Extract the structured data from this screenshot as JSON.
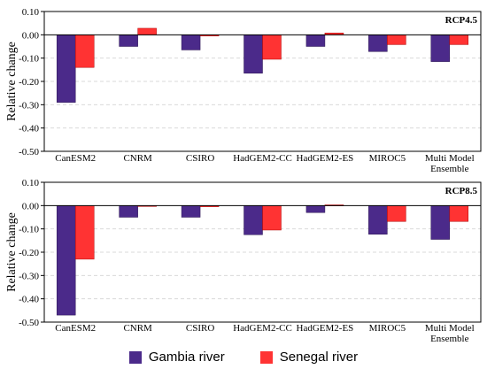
{
  "legend": {
    "items": [
      {
        "label": "Gambia river",
        "color": "#4b2a8a"
      },
      {
        "label": "Senegal river",
        "color": "#ff3333"
      }
    ]
  },
  "chart_data": [
    {
      "type": "bar",
      "annotation": "RCP4.5",
      "xlabel": "",
      "ylabel": "Relative change",
      "ylim": [
        -0.5,
        0.1
      ],
      "yticks": [
        0.1,
        0.0,
        -0.1,
        -0.2,
        -0.3,
        -0.4,
        -0.5
      ],
      "ytick_labels": [
        "0.10",
        "0.00",
        "-0.10",
        "-0.20",
        "-0.30",
        "-0.40",
        "-0.50"
      ],
      "categories": [
        "CanESM2",
        "CNRM",
        "CSIRO",
        "HadGEM2-CC",
        "HadGEM2-ES",
        "MIROC5",
        "Multi Model Ensemble"
      ],
      "grid": true,
      "series": [
        {
          "name": "Gambia river",
          "color": "#4b2a8a",
          "values": [
            -0.29,
            -0.05,
            -0.065,
            -0.165,
            -0.05,
            -0.072,
            -0.115
          ]
        },
        {
          "name": "Senegal river",
          "color": "#ff3333",
          "values": [
            -0.14,
            0.028,
            -0.005,
            -0.105,
            0.008,
            -0.042,
            -0.042
          ]
        }
      ]
    },
    {
      "type": "bar",
      "annotation": "RCP8.5",
      "xlabel": "",
      "ylabel": "Relative change",
      "ylim": [
        -0.5,
        0.1
      ],
      "yticks": [
        0.1,
        0.0,
        -0.1,
        -0.2,
        -0.3,
        -0.4,
        -0.5
      ],
      "ytick_labels": [
        "0.10",
        "0.00",
        "-0.10",
        "-0.20",
        "-0.30",
        "-0.40",
        "-0.50"
      ],
      "categories": [
        "CanESM2",
        "CNRM",
        "CSIRO",
        "HadGEM2-CC",
        "HadGEM2-ES",
        "MIROC5",
        "Multi Model Ensemble"
      ],
      "grid": true,
      "series": [
        {
          "name": "Gambia river",
          "color": "#4b2a8a",
          "values": [
            -0.47,
            -0.05,
            -0.05,
            -0.125,
            -0.03,
            -0.123,
            -0.145
          ]
        },
        {
          "name": "Senegal river",
          "color": "#ff3333",
          "values": [
            -0.23,
            0.0,
            -0.005,
            -0.105,
            0.003,
            -0.068,
            -0.068
          ]
        }
      ]
    }
  ]
}
